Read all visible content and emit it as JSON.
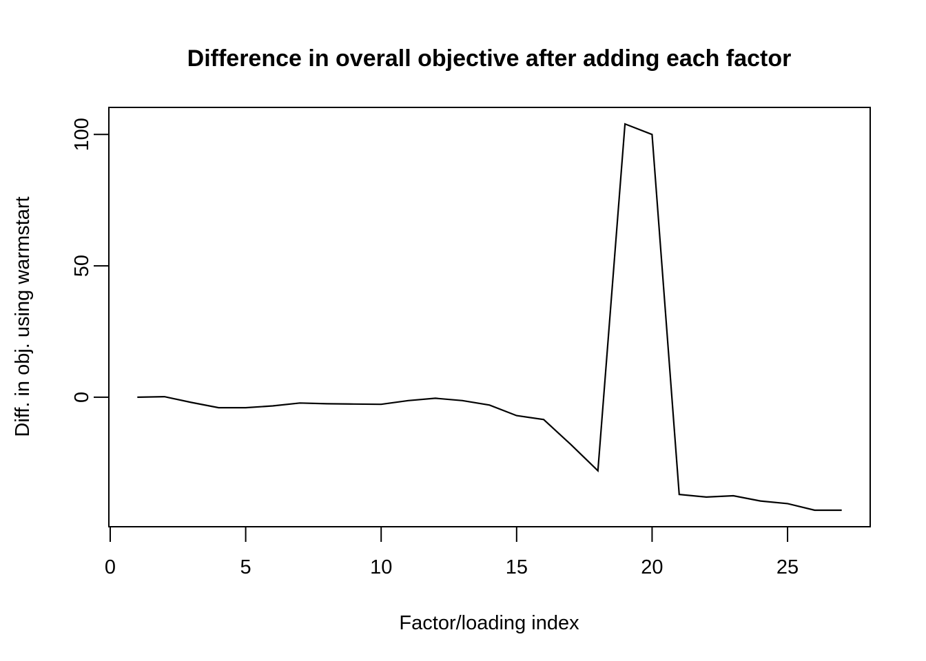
{
  "chart_data": {
    "type": "line",
    "title": "Difference in overall objective after adding each factor",
    "xlabel": "Factor/loading index",
    "ylabel": "Diff. in obj. using warmstart",
    "x": [
      1,
      2,
      3,
      4,
      5,
      6,
      7,
      8,
      9,
      10,
      11,
      12,
      13,
      14,
      15,
      16,
      17,
      18,
      19,
      20,
      21,
      22,
      23,
      24,
      25,
      26,
      27
    ],
    "y": [
      0,
      0.2,
      -2,
      -4,
      -4,
      -3.3,
      -2.2,
      -2.5,
      -2.6,
      -2.7,
      -1.3,
      -0.4,
      -1.3,
      -3,
      -7,
      -8.5,
      -18,
      -28,
      104,
      100,
      -37,
      -38,
      -37.5,
      -39.5,
      -40.5,
      -43,
      -43
    ],
    "x_ticks": [
      0,
      5,
      10,
      15,
      20,
      25
    ],
    "y_ticks": [
      0,
      50,
      100
    ],
    "xlim": [
      -0.05,
      28.05
    ],
    "ylim": [
      -49.3,
      110.3
    ],
    "grid": false,
    "legend_position": "none",
    "line_color": "#000000",
    "axis_color": "#000000",
    "background_color": "#ffffff"
  }
}
